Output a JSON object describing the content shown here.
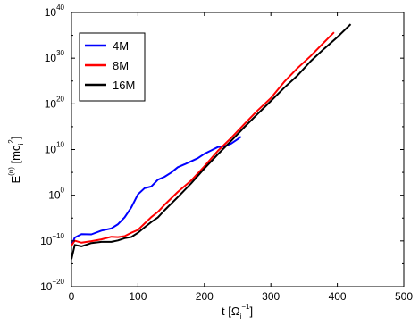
{
  "chart_data": {
    "type": "line",
    "xlabel": {
      "base": "t [Ω",
      "sub": "i",
      "sup": "−1",
      "close": "]"
    },
    "ylabel": {
      "base": "E",
      "sup1": "(n)",
      "mid": " [mc",
      "sub": "i",
      "sup2": "2",
      "tail": "]"
    },
    "xlim": [
      0,
      500
    ],
    "ylim_log10": [
      -20,
      40
    ],
    "y_scale": "log",
    "x_ticks": [
      0,
      100,
      200,
      300,
      400,
      500
    ],
    "y_ticks": [
      {
        "base": "10",
        "exp": "−20",
        "log": -20
      },
      {
        "base": "10",
        "exp": "−10",
        "log": -10
      },
      {
        "base": "10",
        "exp": "0",
        "log": 0
      },
      {
        "base": "10",
        "exp": "10",
        "log": 10
      },
      {
        "base": "10",
        "exp": "20",
        "log": 20
      },
      {
        "base": "10",
        "exp": "30",
        "log": 30
      },
      {
        "base": "10",
        "exp": "40",
        "log": 40
      }
    ],
    "legend_position": "top-left",
    "series": [
      {
        "name": "4M",
        "color": "#0000ff",
        "x": [
          0,
          5,
          15,
          30,
          45,
          60,
          70,
          80,
          90,
          100,
          110,
          120,
          130,
          140,
          150,
          160,
          170,
          180,
          190,
          200,
          210,
          220,
          230,
          240,
          250,
          255
        ],
        "log10_y": [
          -11,
          -9.3,
          -8.7,
          -8.7,
          -7.9,
          -7.5,
          -6.4,
          -4.6,
          -2.5,
          0.2,
          1.6,
          2.2,
          3.4,
          4.1,
          4.8,
          5.8,
          6.6,
          7.2,
          8.0,
          8.8,
          9.6,
          10.3,
          10.9,
          11.6,
          12.5,
          13.0
        ]
      },
      {
        "name": "8M",
        "color": "#ff0000",
        "x": [
          0,
          5,
          15,
          30,
          45,
          60,
          70,
          80,
          90,
          100,
          110,
          120,
          130,
          140,
          160,
          180,
          200,
          220,
          240,
          260,
          280,
          300,
          320,
          340,
          360,
          380,
          395
        ],
        "log10_y": [
          -11,
          -9.8,
          -10.2,
          -9.8,
          -9.6,
          -9.0,
          -9.0,
          -8.8,
          -8.4,
          -7.6,
          -6.4,
          -5.0,
          -3.8,
          -2.4,
          0.6,
          3.4,
          6.6,
          9.7,
          12.6,
          15.6,
          18.6,
          21.6,
          24.6,
          27.5,
          30.4,
          33.2,
          35.6
        ]
      },
      {
        "name": "16M",
        "color": "#000000",
        "x": [
          0,
          5,
          15,
          30,
          45,
          60,
          70,
          80,
          90,
          100,
          110,
          120,
          130,
          140,
          160,
          180,
          200,
          220,
          240,
          260,
          280,
          300,
          320,
          340,
          360,
          380,
          400,
          420
        ],
        "log10_y": [
          -14,
          -11,
          -11.3,
          -10.8,
          -10.4,
          -10.4,
          -10.1,
          -9.6,
          -9.0,
          -8.0,
          -7.0,
          -5.8,
          -4.6,
          -3.2,
          -0.3,
          2.6,
          5.7,
          8.6,
          11.7,
          14.7,
          17.6,
          20.6,
          23.5,
          26.4,
          29.4,
          32.2,
          34.9,
          37.6
        ]
      }
    ]
  }
}
